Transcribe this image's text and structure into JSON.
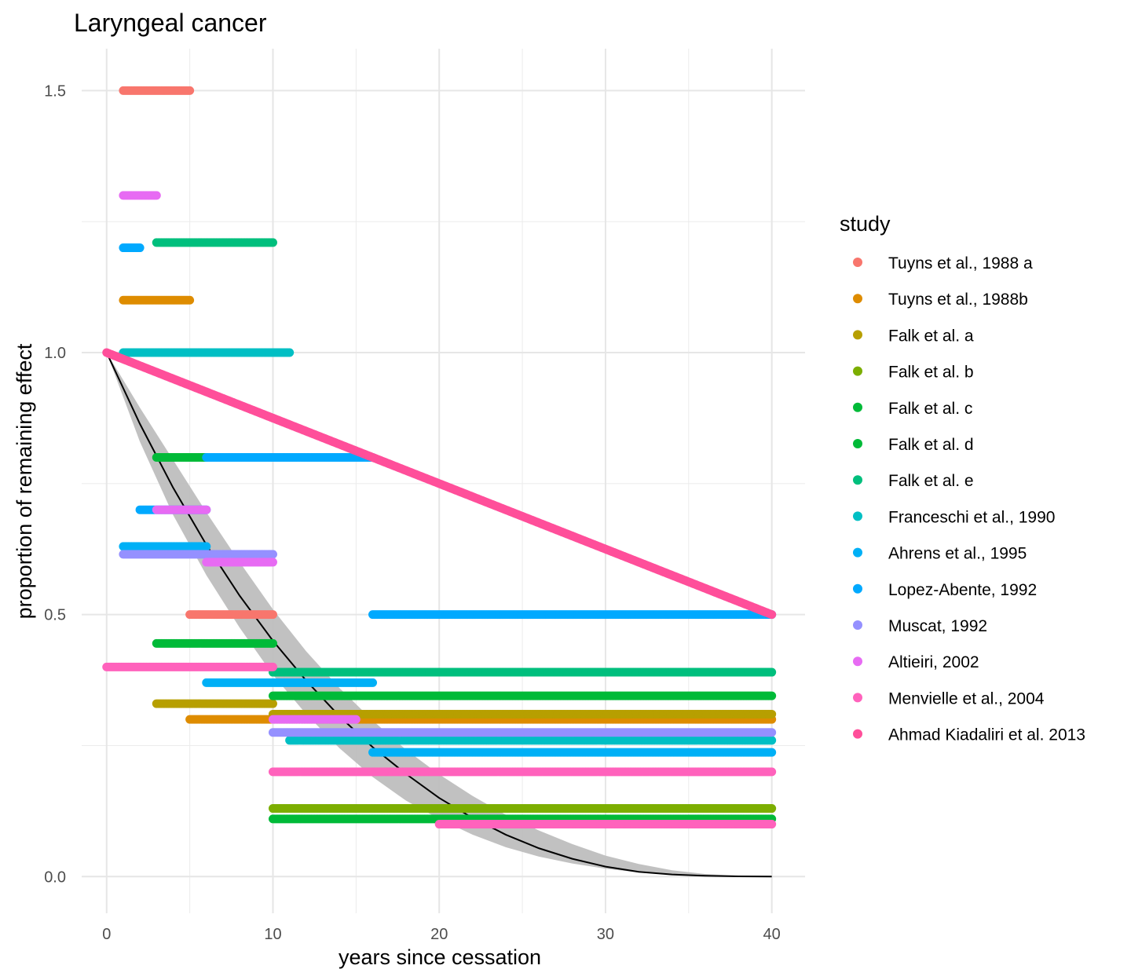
{
  "chart_data": {
    "type": "scatter",
    "title": "Laryngeal cancer",
    "xlabel": "years since cessation",
    "ylabel": "proportion of remaining effect",
    "xlim": [
      -1.5,
      42
    ],
    "ylim": [
      -0.07,
      1.58
    ],
    "x_ticks": [
      0,
      10,
      20,
      30,
      40
    ],
    "x_tick_labels": [
      "0",
      "10",
      "20",
      "30",
      "40"
    ],
    "y_ticks": [
      0.0,
      0.5,
      1.0,
      1.5
    ],
    "y_tick_labels": [
      "0.0",
      "0.5",
      "1.0",
      "1.5"
    ],
    "grid": true,
    "legend_title": "study",
    "legend_position": "right",
    "series": [
      {
        "name": "Tuyns et al., 1988 a",
        "color": "#F8766D",
        "segments": [
          {
            "x0": 1,
            "x1": 5,
            "y": 1.5
          },
          {
            "x0": 5,
            "x1": 10,
            "y": 0.5
          }
        ]
      },
      {
        "name": "Tuyns et al., 1988b",
        "color": "#DE8C00",
        "segments": [
          {
            "x0": 1,
            "x1": 5,
            "y": 1.1
          },
          {
            "x0": 5,
            "x1": 40,
            "y": 0.3
          }
        ]
      },
      {
        "name": "Falk et al. a",
        "color": "#B79F00",
        "segments": [
          {
            "x0": 3,
            "x1": 10,
            "y": 0.33
          },
          {
            "x0": 10,
            "x1": 40,
            "y": 0.31
          }
        ]
      },
      {
        "name": "Falk et al. b",
        "color": "#7CAE00",
        "segments": [
          {
            "x0": 10,
            "x1": 40,
            "y": 0.13
          }
        ]
      },
      {
        "name": "Falk et al. c",
        "color": "#00BA38",
        "segments": [
          {
            "x0": 3,
            "x1": 10,
            "y": 0.445
          },
          {
            "x0": 10,
            "x1": 40,
            "y": 0.11
          }
        ]
      },
      {
        "name": "Falk et al. d",
        "color": "#00BA38",
        "segments": [
          {
            "x0": 3,
            "x1": 6,
            "y": 0.8
          },
          {
            "x0": 10,
            "x1": 40,
            "y": 0.345
          }
        ]
      },
      {
        "name": "Falk et al. e",
        "color": "#00BF7D",
        "segments": [
          {
            "x0": 3,
            "x1": 10,
            "y": 1.21
          },
          {
            "x0": 10,
            "x1": 40,
            "y": 0.39
          }
        ]
      },
      {
        "name": "Franceschi et al., 1990",
        "color": "#00BFC4",
        "segments": [
          {
            "x0": 1,
            "x1": 11,
            "y": 1.0
          },
          {
            "x0": 11,
            "x1": 40,
            "y": 0.26
          }
        ]
      },
      {
        "name": "Ahrens et al., 1995",
        "color": "#00B0F6",
        "segments": [
          {
            "x0": 1,
            "x1": 6,
            "y": 0.63
          },
          {
            "x0": 6,
            "x1": 16,
            "y": 0.37
          },
          {
            "x0": 16,
            "x1": 40,
            "y": 0.237
          }
        ]
      },
      {
        "name": "Lopez-Abente, 1992",
        "color": "#00A9FF",
        "segments": [
          {
            "x0": 1,
            "x1": 2,
            "y": 1.2
          },
          {
            "x0": 2,
            "x1": 6,
            "y": 0.7
          },
          {
            "x0": 6,
            "x1": 16,
            "y": 0.8
          },
          {
            "x0": 16,
            "x1": 40,
            "y": 0.5
          }
        ]
      },
      {
        "name": "Muscat, 1992",
        "color": "#9590FF",
        "segments": [
          {
            "x0": 1,
            "x1": 10,
            "y": 0.615
          },
          {
            "x0": 10,
            "x1": 40,
            "y": 0.275
          }
        ]
      },
      {
        "name": "Altieiri, 2002",
        "color": "#E76BF3",
        "segments": [
          {
            "x0": 1,
            "x1": 3,
            "y": 1.3
          },
          {
            "x0": 3,
            "x1": 6,
            "y": 0.7
          },
          {
            "x0": 6,
            "x1": 10,
            "y": 0.6
          },
          {
            "x0": 10,
            "x1": 15,
            "y": 0.3
          }
        ]
      },
      {
        "name": "Menvielle et al., 2004",
        "color": "#FF62BC",
        "segments": [
          {
            "x0": 0,
            "x1": 10,
            "y": 0.4
          },
          {
            "x0": 10,
            "x1": 40,
            "y": 0.2
          },
          {
            "x0": 20,
            "x1": 40,
            "y": 0.1
          }
        ]
      },
      {
        "name": "Ahmad Kiadaliri et al. 2013",
        "color": "#FF4F9A",
        "segments": [
          {
            "x0": 0,
            "x1": 40,
            "y0": 1.0,
            "y1": 0.5
          }
        ]
      }
    ],
    "fitted_curve": {
      "color": "#000000",
      "ribbon_color": "#BEBEBE",
      "x": [
        0,
        2,
        4,
        6,
        8,
        10,
        12,
        14,
        16,
        18,
        20,
        22,
        24,
        26,
        28,
        30,
        32,
        34,
        36,
        38,
        40
      ],
      "y": [
        1.0,
        0.864,
        0.742,
        0.633,
        0.536,
        0.45,
        0.374,
        0.306,
        0.247,
        0.196,
        0.15,
        0.112,
        0.08,
        0.054,
        0.034,
        0.019,
        0.009,
        0.004,
        0.0015,
        0.0004,
        0.0
      ],
      "ribbon_lower": [
        1.0,
        0.83,
        0.69,
        0.575,
        0.475,
        0.385,
        0.31,
        0.245,
        0.19,
        0.145,
        0.11,
        0.08,
        0.056,
        0.038,
        0.025,
        0.015,
        0.008,
        0.004,
        0.0015,
        0.0004,
        0.0
      ],
      "ribbon_upper": [
        1.0,
        0.895,
        0.795,
        0.695,
        0.6,
        0.51,
        0.43,
        0.36,
        0.298,
        0.242,
        0.195,
        0.154,
        0.118,
        0.088,
        0.062,
        0.04,
        0.024,
        0.012,
        0.005,
        0.0015,
        0.0
      ]
    }
  }
}
